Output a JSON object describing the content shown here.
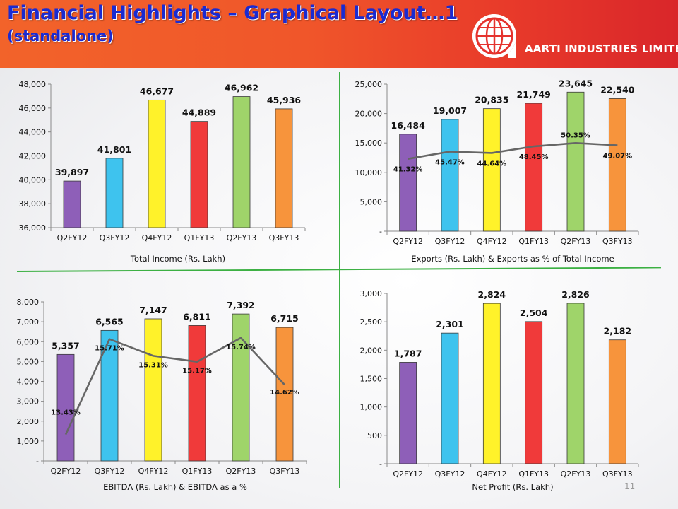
{
  "header": {
    "title": "Financial Highlights – Graphical Layout…1",
    "subtitle": "(standalone)",
    "company_name": "AARTI INDUSTRIES LIMITED",
    "logo_icon": "globe-logo-icon"
  },
  "page_number": "11",
  "colors": {
    "header_start": "#f2632a",
    "header_end": "#d9262a",
    "title": "#1a2ad1",
    "divider": "#3cb043",
    "line": "#666666",
    "bars": [
      "#8e5fb8",
      "#3ec3ee",
      "#fff22a",
      "#f03a3a",
      "#9fd46a",
      "#f7943c"
    ]
  },
  "chart_data": [
    {
      "type": "bar",
      "title": "Total Income (Rs. Lakh)",
      "categories": [
        "Q2FY12",
        "Q3FY12",
        "Q4FY12",
        "Q1FY13",
        "Q2FY13",
        "Q3FY13"
      ],
      "values": [
        39897,
        41801,
        46677,
        44889,
        46962,
        45936
      ],
      "value_labels": [
        "39,897",
        "41,801",
        "46,677",
        "44,889",
        "46,962",
        "45,936"
      ],
      "ylim": [
        36000,
        48000
      ],
      "yticks": [
        36000,
        38000,
        40000,
        42000,
        44000,
        46000,
        48000
      ],
      "ytick_labels": [
        "36,000",
        "38,000",
        "40,000",
        "42,000",
        "44,000",
        "46,000",
        "48,000"
      ],
      "grid": false
    },
    {
      "type": "bar",
      "title": "Exports (Rs. Lakh) & Exports as % of Total Income",
      "categories": [
        "Q2FY12",
        "Q3FY12",
        "Q4FY12",
        "Q1FY13",
        "Q2FY13",
        "Q3FY13"
      ],
      "values": [
        16484,
        19007,
        20835,
        21749,
        23645,
        22540
      ],
      "value_labels": [
        "16,484",
        "19,007",
        "20,835",
        "21,749",
        "23,645",
        "22,540"
      ],
      "ylim": [
        0,
        25000
      ],
      "yticks": [
        0,
        5000,
        10000,
        15000,
        20000,
        25000
      ],
      "ytick_labels": [
        "-",
        "5,000",
        "10,000",
        "15,000",
        "20,000",
        "25,000"
      ],
      "line_values": [
        41.32,
        45.47,
        44.64,
        48.45,
        50.35,
        49.07
      ],
      "line_labels": [
        "41.32%",
        "45.47%",
        "44.64%",
        "48.45%",
        "50.35%",
        "49.07%"
      ],
      "line_scale": [
        0,
        84
      ],
      "grid": false
    },
    {
      "type": "bar",
      "title": "EBITDA (Rs. Lakh) & EBITDA as a %",
      "categories": [
        "Q2FY12",
        "Q3FY12",
        "Q4FY12",
        "Q1FY13",
        "Q2FY13",
        "Q3FY13"
      ],
      "values": [
        5357,
        6565,
        7147,
        6811,
        7392,
        6715
      ],
      "value_labels": [
        "5,357",
        "6,565",
        "7,147",
        "6,811",
        "7,392",
        "6,715"
      ],
      "ylim": [
        0,
        8000
      ],
      "yticks": [
        0,
        1000,
        2000,
        3000,
        4000,
        5000,
        6000,
        7000,
        8000
      ],
      "ytick_labels": [
        "-",
        "1,000",
        "2,000",
        "3,000",
        "4,000",
        "5,000",
        "6,000",
        "7,000",
        "8,000"
      ],
      "line_values": [
        13.43,
        15.71,
        15.31,
        15.17,
        15.74,
        14.62
      ],
      "line_labels": [
        "13.43%",
        "15.71%",
        "15.31%",
        "15.17%",
        "15.74%",
        "14.62%"
      ],
      "line_scale": [
        12.8,
        16.6
      ],
      "grid": false
    },
    {
      "type": "bar",
      "title": "Net Profit (Rs. Lakh)",
      "categories": [
        "Q2FY12",
        "Q3FY12",
        "Q4FY12",
        "Q1FY13",
        "Q2FY13",
        "Q3FY13"
      ],
      "values": [
        1787,
        2301,
        2824,
        2504,
        2826,
        2182
      ],
      "value_labels": [
        "1,787",
        "2,301",
        "2,824",
        "2,504",
        "2,826",
        "2,182"
      ],
      "ylim": [
        0,
        3000
      ],
      "yticks": [
        0,
        500,
        1000,
        1500,
        2000,
        2500,
        3000
      ],
      "ytick_labels": [
        "-",
        "500",
        "1,000",
        "1,500",
        "2,000",
        "2,500",
        "3,000"
      ],
      "grid": false
    }
  ]
}
